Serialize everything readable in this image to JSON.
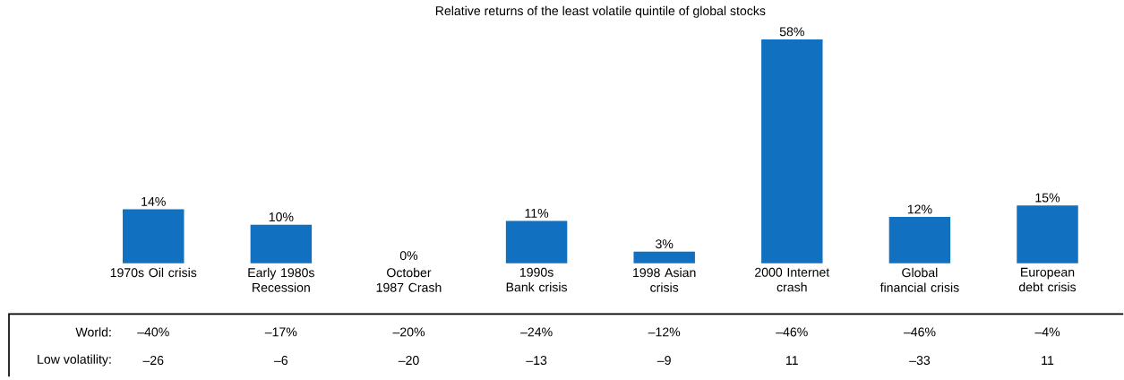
{
  "chart_data": {
    "type": "bar",
    "title": "Relative returns of the least volatile quintile of global stocks",
    "categories": [
      "1970s Oil crisis",
      "Early 1980s Recession",
      "October 1987 Crash",
      "1990s Bank crisis",
      "1998 Asian crisis",
      "2000 Internet crash",
      "Global financial crisis",
      "European debt crisis"
    ],
    "values": [
      14,
      10,
      0,
      11,
      3,
      58,
      12,
      15
    ],
    "value_labels": [
      "14%",
      "10%",
      "0%",
      "11%",
      "3%",
      "58%",
      "12%",
      "15%"
    ],
    "color": "#1170bf",
    "annotations": [
      "World:",
      "–40%",
      "–17%",
      "–20%",
      "–24%",
      "–12%",
      "–46%",
      "–46%",
      "–4%",
      "Low volatility:",
      "–26",
      "–6",
      "–20",
      "–13",
      "–9",
      "11",
      "–33",
      "11"
    ]
  }
}
